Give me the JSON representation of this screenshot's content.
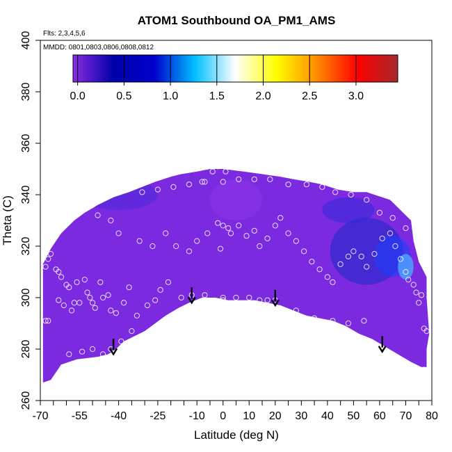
{
  "chart_data": {
    "type": "heatmap",
    "title": "ATOM1 Southbound OA_PM1_AMS",
    "subtitle_lines": [
      "Flts: 2,3,4,5,6",
      "MMDD: 0801,0803,0806,0808,0812"
    ],
    "xlabel": "Latitude (deg N)",
    "ylabel": "Theta (C)",
    "xlim": [
      -70,
      80
    ],
    "ylim": [
      260,
      400
    ],
    "x_ticks": [
      -70,
      -55,
      -40,
      -25,
      -10,
      0,
      10,
      20,
      30,
      40,
      50,
      60,
      70,
      80
    ],
    "x_minor_ticks": [
      -65,
      -60,
      -50,
      -45,
      -35,
      -30,
      -20,
      -15,
      -5,
      5,
      15,
      25,
      35,
      45,
      55,
      65,
      75
    ],
    "y_ticks": [
      260,
      280,
      300,
      320,
      340,
      360,
      380,
      400
    ],
    "colorbar": {
      "range": [
        -0.05,
        3.45
      ],
      "ticks": [
        0.0,
        0.5,
        1.0,
        1.5,
        2.0,
        2.5,
        3.0
      ],
      "tick_labels": [
        "0.0",
        "0.5",
        "1.0",
        "1.5",
        "2.0",
        "2.5",
        "3.0"
      ],
      "colors": [
        "#8a2be2",
        "#0000a8",
        "#0000cd",
        "#00bfff",
        "#ffffff",
        "#ffff00",
        "#ff8c00",
        "#ff0000",
        "#a52a2a"
      ]
    },
    "field_color": "#7b2ae0",
    "field_outline": [
      [
        -69,
        267
      ],
      [
        -66,
        268
      ],
      [
        -62,
        274
      ],
      [
        -56,
        276
      ],
      [
        -48,
        277
      ],
      [
        -44,
        278
      ],
      [
        -41,
        280
      ],
      [
        -38,
        283
      ],
      [
        -30,
        287
      ],
      [
        -22,
        293
      ],
      [
        -17,
        296
      ],
      [
        -13,
        298
      ],
      [
        -8,
        300
      ],
      [
        -3,
        300
      ],
      [
        2,
        299
      ],
      [
        7,
        299
      ],
      [
        12,
        299
      ],
      [
        17,
        298
      ],
      [
        22,
        297
      ],
      [
        27,
        295
      ],
      [
        32,
        293
      ],
      [
        37,
        292
      ],
      [
        42,
        291
      ],
      [
        47,
        289
      ],
      [
        52,
        286
      ],
      [
        57,
        284
      ],
      [
        62,
        281
      ],
      [
        67,
        278
      ],
      [
        72,
        275
      ],
      [
        76,
        273
      ],
      [
        78,
        273
      ],
      [
        78,
        280
      ],
      [
        79,
        286
      ],
      [
        78,
        300
      ],
      [
        78,
        308
      ],
      [
        75,
        314
      ],
      [
        73,
        322
      ],
      [
        72,
        330
      ],
      [
        69,
        333
      ],
      [
        66,
        336
      ],
      [
        64,
        338
      ],
      [
        58,
        340
      ],
      [
        55,
        341
      ],
      [
        50,
        341
      ],
      [
        44,
        342
      ],
      [
        38,
        344
      ],
      [
        33,
        345
      ],
      [
        27,
        346
      ],
      [
        22,
        347
      ],
      [
        15,
        348
      ],
      [
        8,
        349
      ],
      [
        0,
        350
      ],
      [
        -5,
        350
      ],
      [
        -10,
        349
      ],
      [
        -16,
        348
      ],
      [
        -20,
        347
      ],
      [
        -26,
        345
      ],
      [
        -31,
        343
      ],
      [
        -36,
        341
      ],
      [
        -42,
        339
      ],
      [
        -48,
        336
      ],
      [
        -53,
        333
      ],
      [
        -57,
        330
      ],
      [
        -62,
        325
      ],
      [
        -66,
        319
      ],
      [
        -69,
        313
      ]
    ],
    "blue_blobs": [
      {
        "lat": 55,
        "theta": 318,
        "rx": 14,
        "ry": 13,
        "color": "#1a28c8",
        "opacity": 0.55
      },
      {
        "lat": 65,
        "theta": 316,
        "rx": 7,
        "ry": 8,
        "color": "#1a40ff",
        "opacity": 0.55
      },
      {
        "lat": 70,
        "theta": 312,
        "rx": 3,
        "ry": 5,
        "color": "#4aa8ff",
        "opacity": 0.8
      },
      {
        "lat": 48,
        "theta": 334,
        "rx": 10,
        "ry": 5,
        "color": "#2a2ad8",
        "opacity": 0.5
      },
      {
        "lat": -40,
        "theta": 340,
        "rx": 15,
        "ry": 6,
        "color": "#3a2ad8",
        "opacity": 0.4
      },
      {
        "lat": 5,
        "theta": 338,
        "rx": 10,
        "ry": 8,
        "color": "#9a3cf0",
        "opacity": 0.35
      }
    ],
    "points": [
      [
        -68,
        312
      ],
      [
        -67,
        315
      ],
      [
        -66,
        317
      ],
      [
        -64,
        311
      ],
      [
        -63,
        310
      ],
      [
        -62,
        308
      ],
      [
        -60,
        305
      ],
      [
        -59,
        304
      ],
      [
        -56,
        306
      ],
      [
        -53,
        307
      ],
      [
        -52,
        302
      ],
      [
        -51,
        300
      ],
      [
        -50,
        298
      ],
      [
        -49,
        296
      ],
      [
        -47,
        306
      ],
      [
        -46,
        300
      ],
      [
        -44,
        301
      ],
      [
        -43,
        295
      ],
      [
        -41,
        294
      ],
      [
        -38,
        298
      ],
      [
        -36,
        304
      ],
      [
        -55,
        298
      ],
      [
        -57,
        298
      ],
      [
        -58,
        295
      ],
      [
        -61,
        297
      ],
      [
        -63,
        299
      ],
      [
        -68,
        291
      ],
      [
        -67,
        291
      ],
      [
        -59,
        278
      ],
      [
        -54,
        279
      ],
      [
        -50,
        280
      ],
      [
        -46,
        278
      ],
      [
        -43,
        280
      ],
      [
        -39,
        283
      ],
      [
        -35,
        287
      ],
      [
        -33,
        293
      ],
      [
        -29,
        297
      ],
      [
        -26,
        299
      ],
      [
        -24,
        303
      ],
      [
        -21,
        306
      ],
      [
        -16,
        300
      ],
      [
        -12,
        301
      ],
      [
        -7,
        301
      ],
      [
        0,
        300
      ],
      [
        0,
        299
      ],
      [
        5,
        300
      ],
      [
        10,
        300
      ],
      [
        14,
        299
      ],
      [
        17,
        299
      ],
      [
        20,
        299
      ],
      [
        28,
        295
      ],
      [
        35,
        292
      ],
      [
        42,
        291
      ],
      [
        48,
        290
      ],
      [
        54,
        291
      ],
      [
        60,
        281
      ],
      [
        77,
        288
      ],
      [
        78,
        287
      ],
      [
        77,
        272
      ],
      [
        -48,
        332
      ],
      [
        -43,
        330
      ],
      [
        -40,
        325
      ],
      [
        -32,
        322
      ],
      [
        -27,
        320
      ],
      [
        -22,
        325
      ],
      [
        -18,
        320
      ],
      [
        -13,
        318
      ],
      [
        -10,
        322
      ],
      [
        -6,
        325
      ],
      [
        -2,
        329
      ],
      [
        0,
        328
      ],
      [
        2,
        327
      ],
      [
        -1,
        319
      ],
      [
        3,
        325
      ],
      [
        6,
        328
      ],
      [
        9,
        324
      ],
      [
        12,
        326
      ],
      [
        14,
        320
      ],
      [
        17,
        323
      ],
      [
        20,
        328
      ],
      [
        22,
        331
      ],
      [
        25,
        325
      ],
      [
        28,
        322
      ],
      [
        31,
        318
      ],
      [
        34,
        314
      ],
      [
        37,
        311
      ],
      [
        40,
        308
      ],
      [
        42,
        306
      ],
      [
        45,
        313
      ],
      [
        48,
        316
      ],
      [
        50,
        318
      ],
      [
        53,
        316
      ],
      [
        55,
        312
      ],
      [
        58,
        317
      ],
      [
        61,
        323
      ],
      [
        64,
        325
      ],
      [
        66,
        320
      ],
      [
        68,
        315
      ],
      [
        70,
        310
      ],
      [
        71,
        307
      ],
      [
        73,
        305
      ],
      [
        74,
        302
      ],
      [
        76,
        301
      ],
      [
        75,
        298
      ],
      [
        -56,
        340
      ],
      [
        -50,
        340
      ],
      [
        -44,
        343
      ],
      [
        -38,
        342
      ],
      [
        -31,
        341
      ],
      [
        -25,
        342
      ],
      [
        -19,
        343
      ],
      [
        -13,
        344
      ],
      [
        -7,
        345
      ],
      [
        0,
        345
      ],
      [
        6,
        346
      ],
      [
        12,
        346
      ],
      [
        18,
        346
      ],
      [
        25,
        344
      ],
      [
        32,
        344
      ],
      [
        38,
        343
      ],
      [
        43,
        341
      ],
      [
        49,
        340
      ],
      [
        55,
        338
      ],
      [
        60,
        333
      ],
      [
        65,
        331
      ],
      [
        70,
        327
      ],
      [
        -8,
        345
      ],
      [
        -4,
        349
      ],
      [
        1,
        349
      ],
      [
        -2,
        351
      ]
    ],
    "arrows": [
      {
        "lat": -42,
        "theta": 284
      },
      {
        "lat": -12,
        "theta": 304
      },
      {
        "lat": 20,
        "theta": 303
      },
      {
        "lat": 61,
        "theta": 285
      }
    ]
  }
}
